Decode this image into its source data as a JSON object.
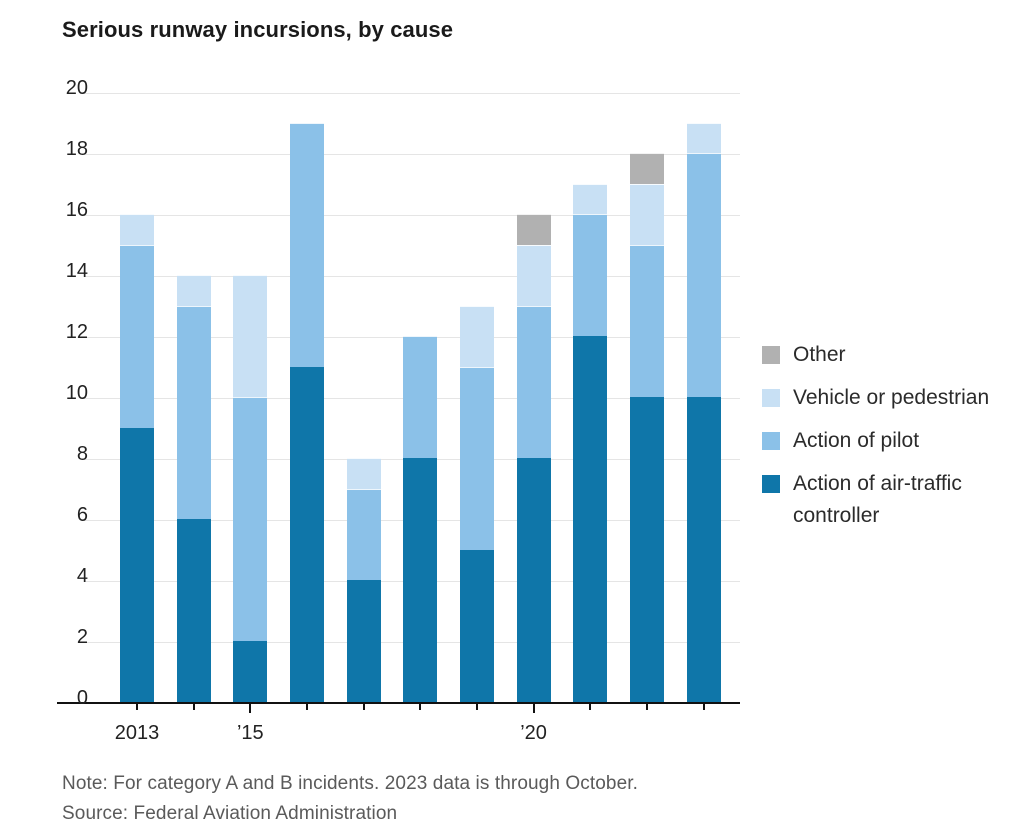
{
  "title": "Serious runway incursions, by cause",
  "note": "Note: For category A and B incidents. 2023 data is through October.",
  "source": "Source: Federal Aviation Administration",
  "legend": [
    {
      "label": "Other",
      "color": "#b1b1b1"
    },
    {
      "label": "Vehicle or pedestrian",
      "color": "#c8e0f4"
    },
    {
      "label": "Action of pilot",
      "color": "#8bc1e8"
    },
    {
      "label": "Action of air-traffic controller",
      "color": "#0f76a9"
    }
  ],
  "chart_data": {
    "type": "bar",
    "stacked": true,
    "title": "Serious runway incursions, by cause",
    "categories": [
      "2013",
      "2014",
      "2015",
      "2016",
      "2017",
      "2018",
      "2019",
      "2020",
      "2021",
      "2022",
      "2023"
    ],
    "x_tick_labels": [
      {
        "index": 0,
        "label": "2013"
      },
      {
        "index": 2,
        "label": "’15"
      },
      {
        "index": 7,
        "label": "’20"
      }
    ],
    "series": [
      {
        "name": "Action of air-traffic controller",
        "color": "#0f76a9",
        "values": [
          9,
          6,
          2,
          11,
          4,
          8,
          5,
          8,
          12,
          10,
          10
        ]
      },
      {
        "name": "Action of pilot",
        "color": "#8bc1e8",
        "values": [
          6,
          7,
          8,
          8,
          3,
          4,
          6,
          5,
          4,
          5,
          8
        ]
      },
      {
        "name": "Vehicle or pedestrian",
        "color": "#c8e0f4",
        "values": [
          1,
          1,
          4,
          0,
          1,
          0,
          2,
          2,
          1,
          2,
          1
        ]
      },
      {
        "name": "Other",
        "color": "#b1b1b1",
        "values": [
          0,
          0,
          0,
          0,
          0,
          0,
          0,
          1,
          0,
          1,
          0
        ]
      }
    ],
    "totals": [
      16,
      14,
      14,
      19,
      8,
      12,
      13,
      16,
      17,
      18,
      19
    ],
    "xlabel": "",
    "ylabel": "",
    "ylim": [
      0,
      20
    ],
    "ytick_step": 2,
    "grid": true,
    "legend_position": "right",
    "colors_note": {
      "gridline": "#e5e5e5",
      "axis": "#111111"
    }
  }
}
